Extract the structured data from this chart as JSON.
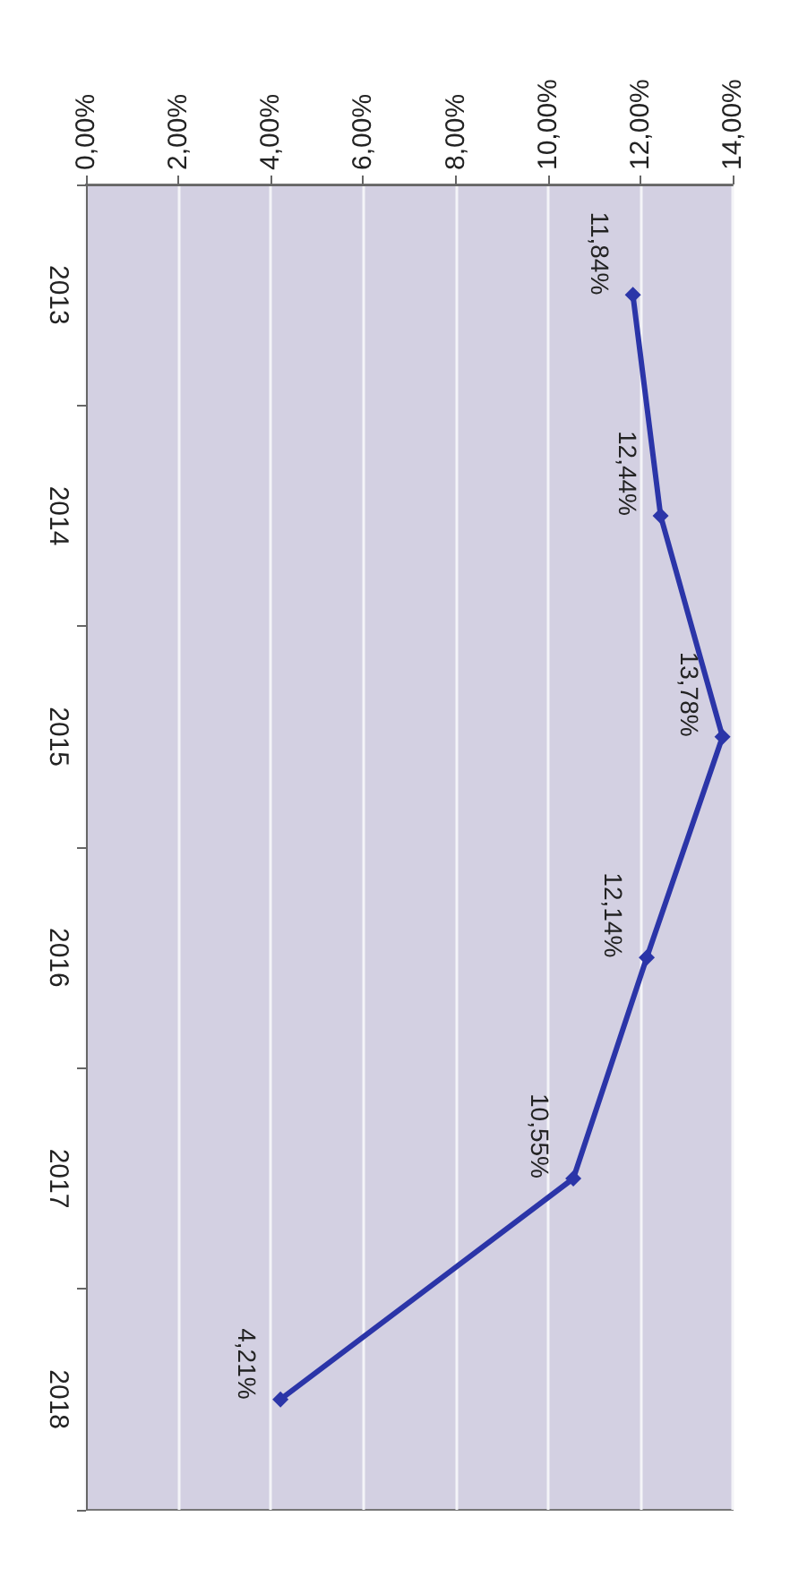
{
  "chart_data": {
    "type": "line",
    "orientation": "horizontal",
    "categories": [
      "2013",
      "2014",
      "2015",
      "2016",
      "2017",
      "2018"
    ],
    "series": [
      {
        "color": "#2b35a8",
        "values": [
          11.84,
          12.44,
          13.78,
          12.14,
          10.55,
          4.21
        ],
        "value_labels": [
          "11,84%",
          "12,44%",
          "13,78%",
          "12,14%",
          "10,55%",
          "4,21%"
        ]
      }
    ],
    "xlim": [
      0,
      14
    ],
    "xticks": [
      {
        "value": 0,
        "label": "0,00%"
      },
      {
        "value": 2,
        "label": "2,00%"
      },
      {
        "value": 4,
        "label": "4,00%"
      },
      {
        "value": 6,
        "label": "6,00%"
      },
      {
        "value": 8,
        "label": "8,00%"
      },
      {
        "value": 10,
        "label": "10,00%"
      },
      {
        "value": 12,
        "label": "12,00%"
      },
      {
        "value": 14,
        "label": "14,00%"
      }
    ],
    "grid": "x",
    "marker": "diamond",
    "line_style": "solid"
  }
}
